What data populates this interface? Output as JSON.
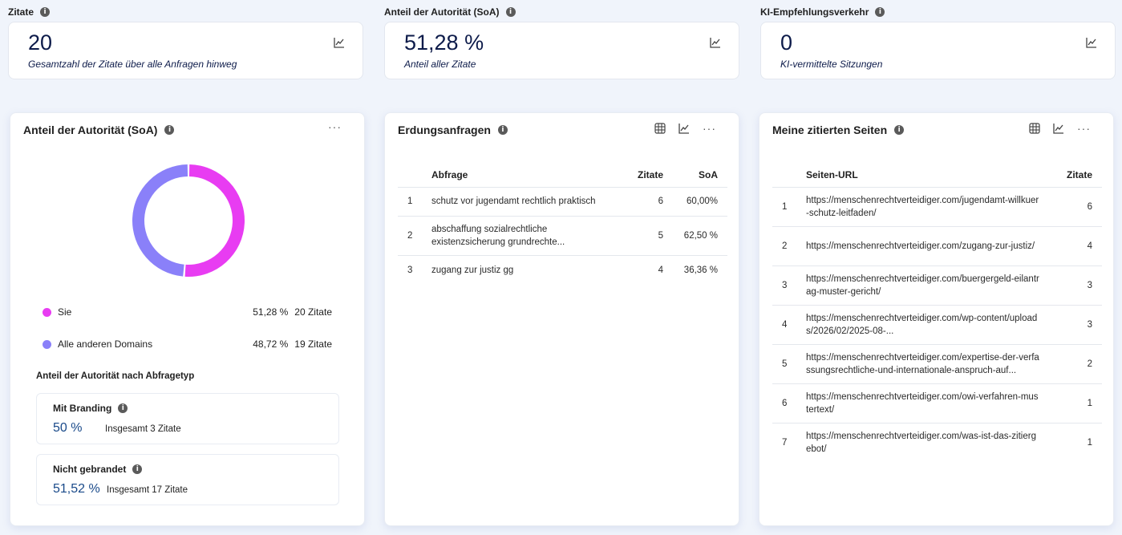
{
  "kpis": [
    {
      "label": "Zitate",
      "value": "20",
      "sub": "Gesamtzahl der Zitate über alle Anfragen hinweg"
    },
    {
      "label": "Anteil der Autorität (SoA)",
      "value": "51,28 %",
      "sub": "Anteil aller Zitate"
    },
    {
      "label": "KI-Empfehlungsverkehr",
      "value": "0",
      "sub": "KI-vermittelte Sitzungen"
    }
  ],
  "soa_panel": {
    "title": "Anteil der Autorität (SoA)",
    "legend": [
      {
        "name": "Sie",
        "pct": "51,28 %",
        "count": "20 Zitate",
        "color": "#e83cf2"
      },
      {
        "name": "Alle anderen Domains",
        "pct": "48,72 %",
        "count": "19 Zitate",
        "color": "#8a80f9"
      }
    ],
    "by_type_heading": "Anteil der Autorität nach Abfragetyp",
    "types": [
      {
        "title": "Mit Branding",
        "pct": "50 %",
        "total": "Insgesamt 3 Zitate"
      },
      {
        "title": "Nicht gebrandet",
        "pct": "51,52 %",
        "total": "Insgesamt 17 Zitate"
      }
    ]
  },
  "queries_panel": {
    "title": "Erdungsanfragen",
    "headers": {
      "query": "Abfrage",
      "citations": "Zitate",
      "soa": "SoA"
    },
    "rows": [
      {
        "n": "1",
        "query": "schutz vor jugendamt rechtlich praktisch",
        "citations": "6",
        "soa": "60,00%"
      },
      {
        "n": "2",
        "query": "abschaffung sozialrechtliche existenzsicherung grundrechte...",
        "citations": "5",
        "soa": "62,50 %"
      },
      {
        "n": "3",
        "query": "zugang zur justiz gg",
        "citations": "4",
        "soa": "36,36 %"
      }
    ]
  },
  "pages_panel": {
    "title": "Meine zitierten Seiten",
    "headers": {
      "url": "Seiten-URL",
      "citations": "Zitate"
    },
    "rows": [
      {
        "n": "1",
        "url": "https://menschenrechtverteidiger.com/jugendamt-willkuer-schutz-leitfaden/",
        "citations": "6"
      },
      {
        "n": "2",
        "url": "https://menschenrechtverteidiger.com/zugang-zur-justiz/",
        "citations": "4"
      },
      {
        "n": "3",
        "url": "https://menschenrechtverteidiger.com/buergergeld-eilantrag-muster-gericht/",
        "citations": "3"
      },
      {
        "n": "4",
        "url": "https://menschenrechtverteidiger.com/wp-content/uploads/2026/02/2025-08-...",
        "citations": "3"
      },
      {
        "n": "5",
        "url": "https://menschenrechtverteidiger.com/expertise-der-verfassungsrechtliche-und-internationale-anspruch-auf...",
        "citations": "2"
      },
      {
        "n": "6",
        "url": "https://menschenrechtverteidiger.com/owi-verfahren-mustertext/",
        "citations": "1"
      },
      {
        "n": "7",
        "url": "https://menschenrechtverteidiger.com/was-ist-das-zitiergebot/",
        "citations": "1"
      }
    ]
  },
  "icons": {
    "info": "i",
    "more": "···"
  }
}
